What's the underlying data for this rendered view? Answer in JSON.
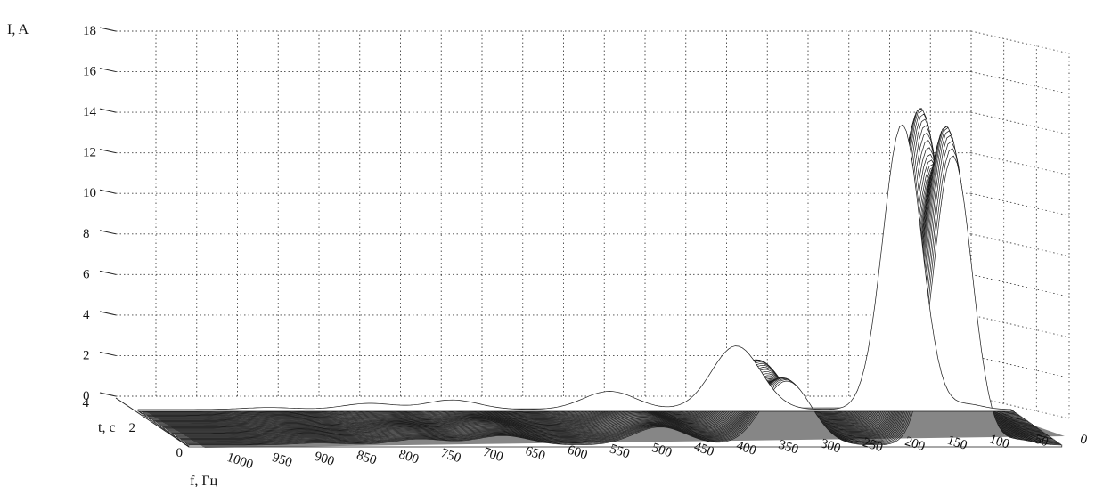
{
  "chart_data": {
    "type": "surface",
    "title": "",
    "zlabel": "I, A",
    "ylabel": "t, c",
    "xlabel": "f, Гц",
    "z_ticks": [
      "0",
      "2",
      "4",
      "6",
      "8",
      "10",
      "12",
      "14",
      "16",
      "18"
    ],
    "t_ticks": [
      "0",
      "2",
      "4"
    ],
    "f_ticks": [
      "1000",
      "950",
      "900",
      "850",
      "800",
      "750",
      "700",
      "650",
      "600",
      "550",
      "500",
      "450",
      "400",
      "350",
      "300",
      "250",
      "200",
      "150",
      "100",
      "50",
      "0"
    ],
    "zlim": [
      0,
      18
    ],
    "tlim": [
      0,
      4
    ],
    "flim": [
      0,
      1000
    ],
    "grid": true,
    "peaks": [
      {
        "f": 125,
        "amplitude": 15.5
      },
      {
        "f": 315,
        "amplitude": 3.2
      },
      {
        "f": 460,
        "amplitude": 0.9
      },
      {
        "f": 640,
        "amplitude": 0.5
      },
      {
        "f": 735,
        "amplitude": 0.35
      },
      {
        "f": 850,
        "amplitude": 0.12
      }
    ]
  }
}
